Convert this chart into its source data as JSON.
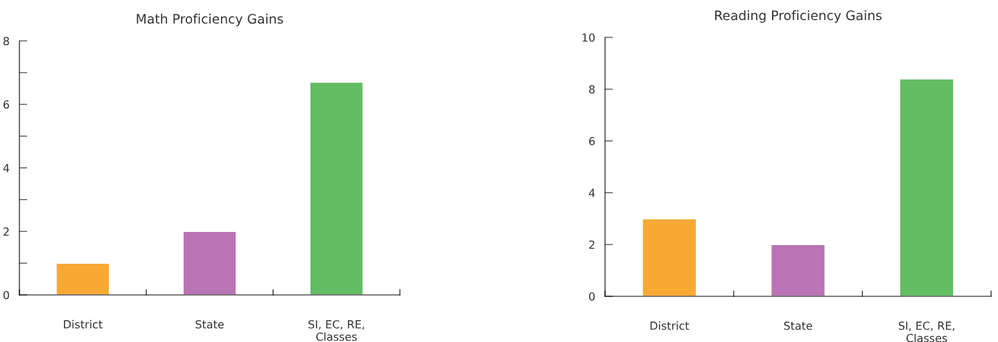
{
  "chart_data": [
    {
      "type": "bar",
      "title": "Math Proficiency Gains",
      "categories": [
        "District",
        "State",
        "SI, EC, RE,\nClasses"
      ],
      "values": [
        1,
        2,
        6.7
      ],
      "colors": [
        "#f7a934",
        "#b874b4",
        "#62bd65"
      ],
      "ylim": [
        0,
        8
      ],
      "yticks": [
        0,
        {
          "value": 1,
          "label": null
        },
        2,
        {
          "value": 3,
          "label": null
        },
        4,
        {
          "value": 5,
          "label": null
        },
        6,
        {
          "value": 7,
          "label": null
        },
        8
      ],
      "grid": false,
      "legend": false
    },
    {
      "type": "bar",
      "title": "Reading Proficiency Gains",
      "categories": [
        "District",
        "State",
        "SI, EC, RE,\nClasses"
      ],
      "values": [
        3,
        2,
        8.4
      ],
      "colors": [
        "#f7a934",
        "#b874b4",
        "#62bd65"
      ],
      "ylim": [
        0,
        10
      ],
      "yticks": [
        0,
        2,
        4,
        6,
        8,
        10
      ],
      "grid": false,
      "legend": false
    }
  ]
}
